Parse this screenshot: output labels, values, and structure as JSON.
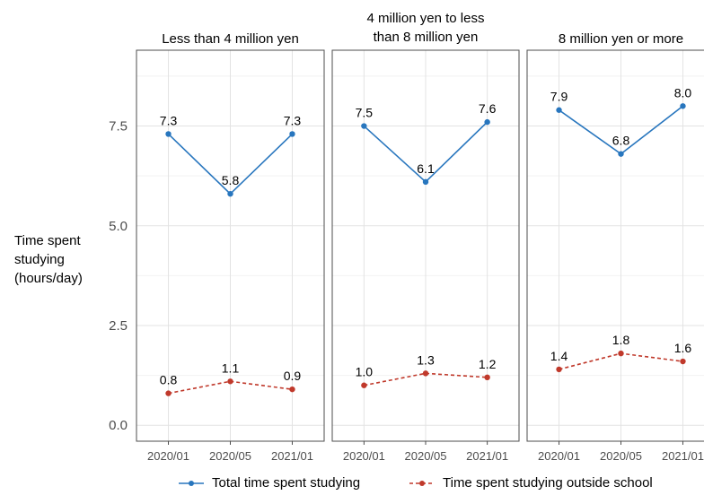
{
  "chart_data": {
    "type": "line",
    "ylabel": [
      "Time spent",
      "studying",
      "(hours/day)"
    ],
    "ylim": [
      -0.4,
      9.4
    ],
    "y_ticks": [
      "0.0",
      "2.5",
      "5.0",
      "7.5"
    ],
    "categories": [
      "2020/01",
      "2020/05",
      "2021/01"
    ],
    "grid": true,
    "legend_position": "bottom",
    "panels": [
      {
        "title": [
          "Less than 4 million  yen"
        ],
        "series": [
          {
            "name": "Total time spent studying",
            "values": [
              7.3,
              5.8,
              7.3
            ],
            "labels": [
              "7.3",
              "5.8",
              "7.3"
            ]
          },
          {
            "name": "Time spent studying outside school",
            "values": [
              0.8,
              1.1,
              0.9
            ],
            "labels": [
              "0.8",
              "1.1",
              "0.9"
            ]
          }
        ]
      },
      {
        "title": [
          "4 million  yen to less",
          "than 8 million  yen"
        ],
        "series": [
          {
            "name": "Total time spent studying",
            "values": [
              7.5,
              6.1,
              7.6
            ],
            "labels": [
              "7.5",
              "6.1",
              "7.6"
            ]
          },
          {
            "name": "Time spent studying outside school",
            "values": [
              1.0,
              1.3,
              1.2
            ],
            "labels": [
              "1.0",
              "1.3",
              "1.2"
            ]
          }
        ]
      },
      {
        "title": [
          "8 million  yen or more"
        ],
        "series": [
          {
            "name": "Total time spent studying",
            "values": [
              7.9,
              6.8,
              8.0
            ],
            "labels": [
              "7.9",
              "6.8",
              "8.0"
            ]
          },
          {
            "name": "Time spent studying outside school",
            "values": [
              1.4,
              1.8,
              1.6
            ],
            "labels": [
              "1.4",
              "1.8",
              "1.6"
            ]
          }
        ]
      }
    ],
    "legend": [
      "Total time spent studying",
      "Time spent studying outside school"
    ],
    "colors": {
      "total": "#2876be",
      "outside": "#c0392b"
    }
  }
}
